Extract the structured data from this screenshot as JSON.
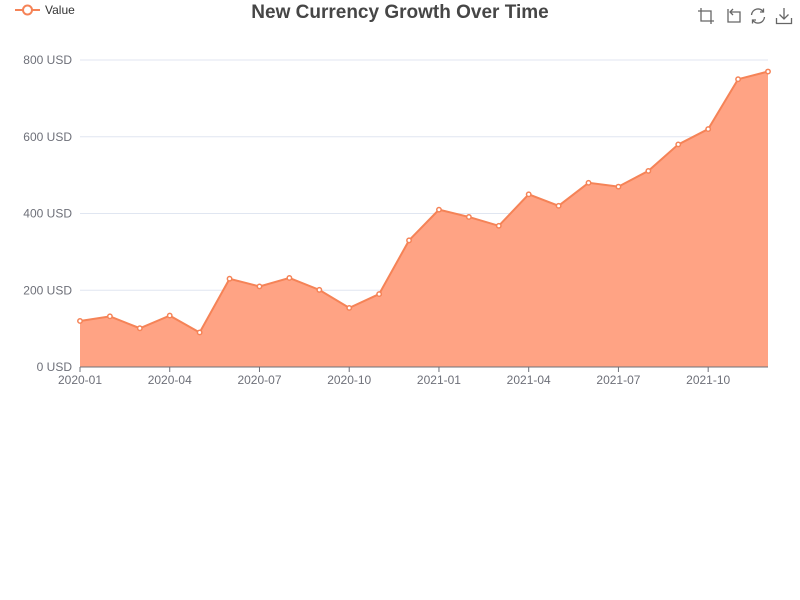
{
  "chart_data": {
    "type": "area",
    "title": "New Currency Growth Over Time",
    "series": [
      {
        "name": "Value",
        "color": "#f58357",
        "area_color": "#ffa384",
        "x": [
          "2020-01",
          "2020-02",
          "2020-03",
          "2020-04",
          "2020-05",
          "2020-06",
          "2020-07",
          "2020-08",
          "2020-09",
          "2020-10",
          "2020-11",
          "2020-12",
          "2021-01",
          "2021-02",
          "2021-03",
          "2021-04",
          "2021-05",
          "2021-06",
          "2021-07",
          "2021-08",
          "2021-09",
          "2021-10",
          "2021-11",
          "2021-12"
        ],
        "values": [
          120,
          132,
          101,
          134,
          90,
          230,
          210,
          232,
          201,
          154,
          190,
          330,
          410,
          391,
          368,
          450,
          420,
          480,
          470,
          511,
          580,
          620,
          750,
          770
        ]
      }
    ],
    "xlabel": "",
    "ylabel": "",
    "x_tick_labels": [
      "2020-01",
      "2020-04",
      "2020-07",
      "2020-10",
      "2021-01",
      "2021-04",
      "2021-07",
      "2021-10"
    ],
    "y_tick_labels": [
      "0 USD",
      "200 USD",
      "400 USD",
      "600 USD",
      "800 USD"
    ],
    "ylim": [
      0,
      800
    ],
    "y_ticks": [
      0,
      200,
      400,
      600,
      800
    ],
    "grid": true,
    "legend_position": "top-left"
  },
  "toolbox": {
    "icons": [
      "zoom-icon",
      "zoom-reset-icon",
      "restore-icon",
      "save-image-icon"
    ]
  }
}
